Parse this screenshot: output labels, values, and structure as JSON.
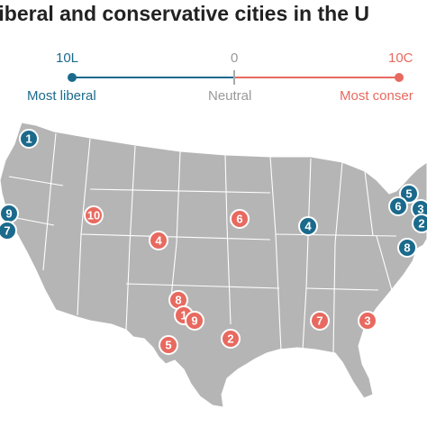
{
  "title": "liberal and conservative cities in the U",
  "scale": {
    "left_value": "10L",
    "mid_value": "0",
    "right_value": "10C",
    "left_label": "Most liberal",
    "mid_label": "Neutral",
    "right_label": "Most conser",
    "liberal_color": "#1b6a8c",
    "conservative_color": "#e8695f",
    "neutral_color": "#aaaaaa"
  },
  "map": {
    "land_color": "#b5b5b5",
    "border_color": "#ffffff",
    "liberal_markers": [
      "1",
      "5",
      "6",
      "3",
      "2",
      "4",
      "8",
      "9",
      "7"
    ],
    "conservative_markers": [
      "6",
      "10",
      "4",
      "8",
      "1",
      "9",
      "5",
      "2",
      "7",
      "3"
    ]
  }
}
